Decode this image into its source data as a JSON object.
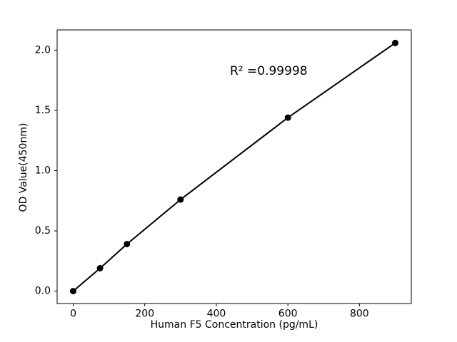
{
  "chart_data": {
    "type": "line",
    "title": "",
    "xlabel": "Human F5 Concentration (pg/mL)",
    "ylabel": "OD Value(450nm)",
    "annotation": "R² =0.99998",
    "x": [
      0,
      75,
      150,
      300,
      600,
      900
    ],
    "y": [
      0.0,
      0.19,
      0.39,
      0.76,
      1.44,
      2.06
    ],
    "xlim": [
      -45,
      945
    ],
    "ylim": [
      -0.103,
      2.168
    ],
    "xticks": [
      0,
      200,
      400,
      600,
      800
    ],
    "yticks": [
      0,
      0.5,
      1,
      1.5,
      2
    ],
    "grid": false,
    "legend": "none",
    "line_color": "#000000",
    "marker_color": "#000000",
    "background": "#ffffff"
  }
}
